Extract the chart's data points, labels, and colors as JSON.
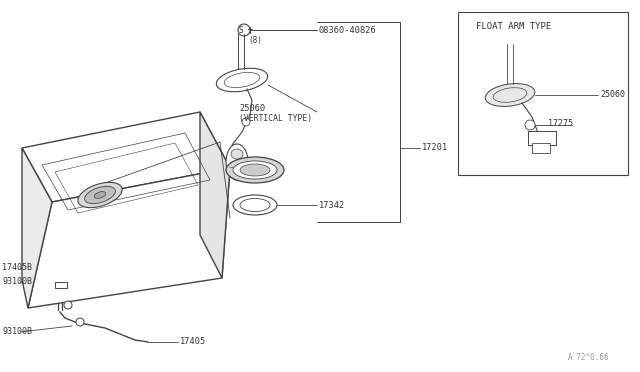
{
  "bg_color": "#ffffff",
  "line_color": "#444444",
  "text_color": "#333333",
  "float_arm_label": "FLOAT ARM TYPE",
  "part_numbers": {
    "08360_40826": "08360-40826",
    "8": "(8)",
    "25060": "25060",
    "vertical_type": "(VERTICAL TYPE)",
    "17201": "17201",
    "17342": "17342",
    "17405B": "17405B",
    "17405": "17405",
    "93100B_top": "93100B",
    "93100B_bot": "93100B",
    "17275": "17275",
    "25060_float": "25060"
  },
  "watermark": "A'72^0.66",
  "font_size_label": 6.0
}
